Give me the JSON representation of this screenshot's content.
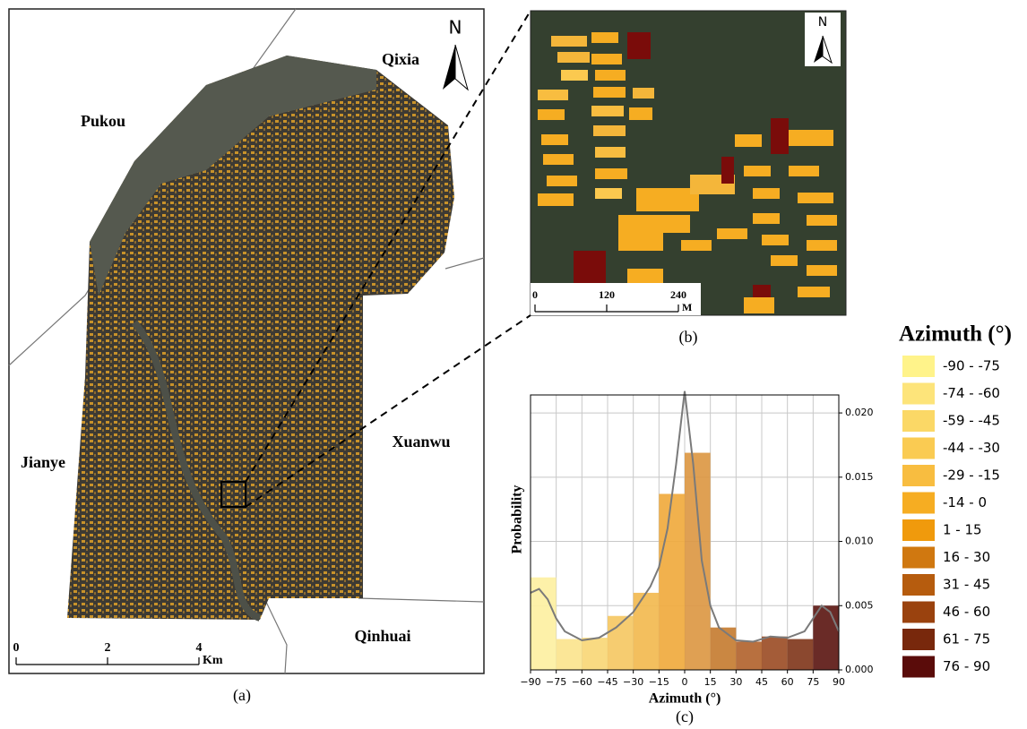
{
  "map": {
    "panel_label": "(a)",
    "regions": [
      "Pukou",
      "Qixia",
      "Jianye",
      "Xuanwu",
      "Qinhuai"
    ],
    "north": "N",
    "scale_bar": {
      "ticks": [
        0,
        2,
        4
      ],
      "unit": "Km"
    }
  },
  "inset": {
    "panel_label": "(b)",
    "north": "N",
    "scale_bar": {
      "ticks": [
        0,
        120,
        240
      ],
      "unit": "M"
    }
  },
  "chart_data": {
    "type": "histogram",
    "panel_label": "(c)",
    "xlabel": "Azimuth (°)",
    "ylabel": "Probability",
    "bins": [
      -90,
      -75,
      -60,
      -45,
      -30,
      -15,
      0,
      15,
      30,
      45,
      60,
      75,
      90
    ],
    "values": [
      0.0072,
      0.0024,
      0.0025,
      0.0042,
      0.006,
      0.0137,
      0.0169,
      0.0033,
      0.0022,
      0.0026,
      0.0024,
      0.005
    ],
    "colors": [
      "#fdf0a0",
      "#fbe38c",
      "#f8d674",
      "#f5c760",
      "#f2b84c",
      "#efa83a",
      "#dc9640",
      "#c47a2e",
      "#b0602a",
      "#9a4a22",
      "#7e3418",
      "#5a1410"
    ],
    "line": {
      "x": [
        -90,
        -85,
        -80,
        -75,
        -70,
        -60,
        -50,
        -40,
        -30,
        -20,
        -15,
        -10,
        -5,
        0,
        5,
        10,
        15,
        20,
        30,
        40,
        50,
        60,
        70,
        75,
        80,
        85,
        90
      ],
      "values": [
        0.006,
        0.0063,
        0.0055,
        0.004,
        0.003,
        0.0023,
        0.0025,
        0.0033,
        0.0045,
        0.0065,
        0.008,
        0.011,
        0.016,
        0.0217,
        0.016,
        0.0085,
        0.005,
        0.0033,
        0.0023,
        0.0022,
        0.0026,
        0.0025,
        0.003,
        0.004,
        0.005,
        0.0045,
        0.003
      ],
      "color": "#7a7a7a"
    },
    "xlim": [
      -90,
      90
    ],
    "ylim": [
      0,
      0.0214
    ],
    "xticks": [
      {
        "value": -90,
        "label": "−90"
      },
      {
        "value": -75,
        "label": "−75"
      },
      {
        "value": -60,
        "label": "−60"
      },
      {
        "value": -45,
        "label": "−45"
      },
      {
        "value": -30,
        "label": "−30"
      },
      {
        "value": -15,
        "label": "−15"
      },
      0,
      15,
      30,
      45,
      60,
      75,
      90
    ],
    "yticks": [
      {
        "value": 0,
        "label": "0.000"
      },
      {
        "value": 0.005,
        "label": "0.005"
      },
      {
        "value": 0.01,
        "label": "0.010"
      },
      {
        "value": 0.015,
        "label": "0.015"
      },
      {
        "value": 0.02,
        "label": "0.020"
      }
    ],
    "grid": true,
    "y_axis_side": "right"
  },
  "legend": {
    "title": "Azimuth (°)",
    "items": [
      {
        "label": "-90 - -75",
        "color": "#fff38a"
      },
      {
        "label": "-74 - -60",
        "color": "#fde47a"
      },
      {
        "label": "-59 - -45",
        "color": "#fbd866"
      },
      {
        "label": "-44 - -30",
        "color": "#facb52"
      },
      {
        "label": "-29 - -15",
        "color": "#f8bd40"
      },
      {
        "label": "-14 - 0",
        "color": "#f6ad22"
      },
      {
        "label": "1 - 15",
        "color": "#f09a0c"
      },
      {
        "label": "16 - 30",
        "color": "#d07810"
      },
      {
        "label": "31 - 45",
        "color": "#b65c0e"
      },
      {
        "label": "46 - 60",
        "color": "#9a420e"
      },
      {
        "label": "61 - 75",
        "color": "#78280c"
      },
      {
        "label": "76 - 90",
        "color": "#5a0c0a"
      }
    ]
  }
}
